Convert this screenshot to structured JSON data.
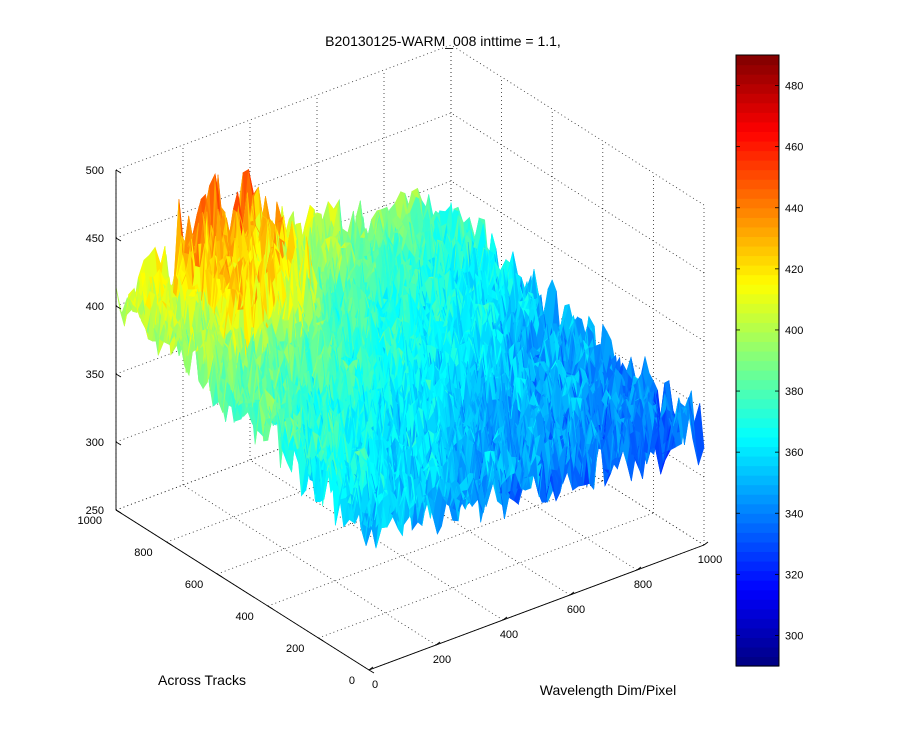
{
  "chart_data": {
    "type": "surface",
    "title": "B20130125-WARM_008 inttime = 1.1,",
    "xlabel": "Wavelength Dim/Pixel",
    "ylabel": "Across Tracks",
    "zlabel": "",
    "xlim": [
      0,
      1000
    ],
    "ylim": [
      0,
      1000
    ],
    "zlim": [
      250,
      500
    ],
    "xticks": [
      "0",
      "200",
      "400",
      "600",
      "800",
      "1000"
    ],
    "yticks": [
      "0",
      "200",
      "400",
      "600",
      "800",
      "1000"
    ],
    "zticks": [
      "250",
      "300",
      "350",
      "400",
      "450",
      "500"
    ],
    "grid": true,
    "colormap": "jet",
    "colorbar": {
      "range": [
        290,
        490
      ],
      "ticks": [
        "300",
        "320",
        "340",
        "360",
        "380",
        "400",
        "420",
        "440",
        "460",
        "480"
      ]
    },
    "surface_grid": {
      "x": [
        0,
        200,
        400,
        600,
        800,
        1000
      ],
      "y": [
        0,
        200,
        400,
        600,
        800,
        1000
      ],
      "z": [
        [
          360,
          352,
          345,
          340,
          336,
          334
        ],
        [
          368,
          360,
          352,
          346,
          342,
          338
        ],
        [
          378,
          370,
          361,
          354,
          348,
          344
        ],
        [
          390,
          382,
          372,
          364,
          357,
          350
        ],
        [
          402,
          394,
          385,
          376,
          368,
          360
        ],
        [
          410,
          410,
          420,
          400,
          386,
          376
        ]
      ],
      "noise_amplitude": 25
    },
    "peak_region": {
      "x": [
        150,
        400
      ],
      "y": [
        700,
        1000
      ],
      "z_max": 475
    }
  }
}
